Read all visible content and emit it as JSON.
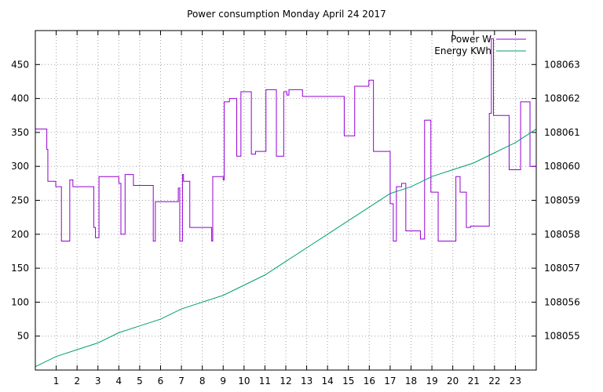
{
  "chart_data": {
    "type": "line",
    "title": "Power consumption Monday April 24 2017",
    "xlim": [
      0,
      24
    ],
    "ylim": [
      0,
      500
    ],
    "y2lim": [
      108054,
      108064
    ],
    "x_ticks": [
      1,
      2,
      3,
      4,
      5,
      6,
      7,
      8,
      9,
      10,
      11,
      12,
      13,
      14,
      15,
      16,
      17,
      18,
      19,
      20,
      21,
      22,
      23
    ],
    "y_ticks": [
      50,
      100,
      150,
      200,
      250,
      300,
      350,
      400,
      450
    ],
    "y2_ticks": [
      108055,
      108056,
      108057,
      108058,
      108059,
      108060,
      108061,
      108062,
      108063
    ],
    "grid": true,
    "legend_position": "top-right",
    "series": [
      {
        "name": "Power W",
        "axis": "y",
        "color": "#9400d3",
        "step": true,
        "x": [
          0,
          0.55,
          0.6,
          0.98,
          1.25,
          1.65,
          1.8,
          2.8,
          2.88,
          3.05,
          4.0,
          4.1,
          4.3,
          4.7,
          5.65,
          5.75,
          6.85,
          6.92,
          7.05,
          7.1,
          7.4,
          8.45,
          8.5,
          9.0,
          9.05,
          9.3,
          9.65,
          9.85,
          10.35,
          10.55,
          11.05,
          11.55,
          11.9,
          12.05,
          12.15,
          12.8,
          12.9,
          13.1,
          13.4,
          14.8,
          15.3,
          15.45,
          15.98,
          16.2,
          17.0,
          17.15,
          17.3,
          17.55,
          17.75,
          18.45,
          18.65,
          18.95,
          19.3,
          19.4,
          20.15,
          20.35,
          20.65,
          20.85,
          21.75,
          21.85,
          21.95,
          22.25,
          22.7,
          23.25,
          23.7,
          24
        ],
        "y": [
          355,
          325,
          278,
          270,
          190,
          280,
          270,
          210,
          195,
          285,
          275,
          200,
          288,
          272,
          190,
          248,
          268,
          190,
          288,
          278,
          210,
          190,
          285,
          280,
          395,
          400,
          315,
          410,
          318,
          322,
          413,
          315,
          410,
          405,
          413,
          403,
          403,
          403,
          403,
          345,
          418,
          418,
          427,
          322,
          245,
          190,
          270,
          275,
          205,
          193,
          368,
          262,
          190,
          190,
          285,
          262,
          210,
          212,
          378,
          488,
          375,
          375,
          295,
          395,
          300,
          298
        ]
      },
      {
        "name": "Energy KWh",
        "axis": "y2",
        "color": "#009e73",
        "step": false,
        "x": [
          0,
          1,
          2,
          3,
          4,
          5,
          6,
          7,
          8,
          9,
          10,
          11,
          12,
          13,
          14,
          15,
          16,
          17,
          18,
          19,
          20,
          21,
          22,
          23,
          24
        ],
        "y": [
          108054.1,
          108054.4,
          108054.6,
          108054.8,
          108055.1,
          108055.3,
          108055.5,
          108055.8,
          108056.0,
          108056.2,
          108056.5,
          108056.8,
          108057.2,
          108057.6,
          108058.0,
          108058.4,
          108058.8,
          108059.2,
          108059.4,
          108059.7,
          108059.9,
          108060.1,
          108060.4,
          108060.7,
          108061.1
        ]
      }
    ]
  }
}
